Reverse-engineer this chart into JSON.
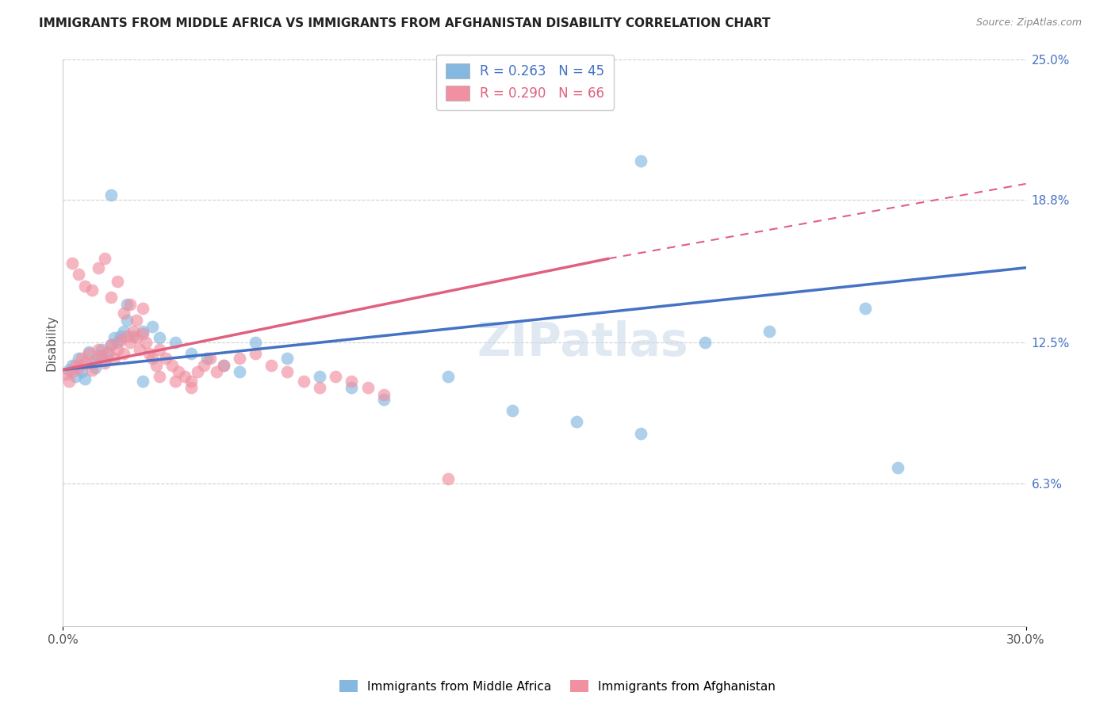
{
  "title": "IMMIGRANTS FROM MIDDLE AFRICA VS IMMIGRANTS FROM AFGHANISTAN DISABILITY CORRELATION CHART",
  "source": "Source: ZipAtlas.com",
  "ylabel": "Disability",
  "xlim": [
    0.0,
    0.3
  ],
  "ylim": [
    0.0,
    0.25
  ],
  "x_tick_labels": [
    "0.0%",
    "30.0%"
  ],
  "y_tick_labels_right": [
    "25.0%",
    "18.8%",
    "12.5%",
    "6.3%"
  ],
  "y_tick_values_right": [
    0.25,
    0.188,
    0.125,
    0.063
  ],
  "blue_R": 0.263,
  "blue_N": 45,
  "pink_R": 0.29,
  "pink_N": 66,
  "blue_color": "#85b8e0",
  "pink_color": "#f090a0",
  "blue_line_color": "#4472c4",
  "pink_line_color": "#e06080",
  "watermark": "ZIPatlas",
  "legend_label_blue": "Immigrants from Middle Africa",
  "legend_label_pink": "Immigrants from Afghanistan",
  "blue_scatter_x": [
    0.002,
    0.003,
    0.004,
    0.005,
    0.006,
    0.007,
    0.008,
    0.009,
    0.01,
    0.011,
    0.012,
    0.013,
    0.014,
    0.015,
    0.016,
    0.017,
    0.018,
    0.019,
    0.02,
    0.022,
    0.025,
    0.028,
    0.03,
    0.035,
    0.04,
    0.045,
    0.05,
    0.055,
    0.06,
    0.07,
    0.08,
    0.09,
    0.1,
    0.12,
    0.14,
    0.16,
    0.18,
    0.2,
    0.22,
    0.25,
    0.26,
    0.015,
    0.02,
    0.025,
    0.18
  ],
  "blue_scatter_y": [
    0.113,
    0.115,
    0.11,
    0.118,
    0.112,
    0.109,
    0.121,
    0.116,
    0.114,
    0.119,
    0.122,
    0.117,
    0.12,
    0.124,
    0.127,
    0.125,
    0.128,
    0.13,
    0.135,
    0.128,
    0.13,
    0.132,
    0.127,
    0.125,
    0.12,
    0.118,
    0.115,
    0.112,
    0.125,
    0.118,
    0.11,
    0.105,
    0.1,
    0.11,
    0.095,
    0.09,
    0.085,
    0.125,
    0.13,
    0.14,
    0.07,
    0.19,
    0.142,
    0.108,
    0.205
  ],
  "pink_scatter_x": [
    0.001,
    0.002,
    0.003,
    0.004,
    0.005,
    0.006,
    0.007,
    0.008,
    0.009,
    0.01,
    0.011,
    0.012,
    0.013,
    0.014,
    0.015,
    0.016,
    0.017,
    0.018,
    0.019,
    0.02,
    0.021,
    0.022,
    0.023,
    0.024,
    0.025,
    0.026,
    0.027,
    0.028,
    0.029,
    0.03,
    0.032,
    0.034,
    0.036,
    0.038,
    0.04,
    0.042,
    0.044,
    0.046,
    0.048,
    0.05,
    0.055,
    0.06,
    0.065,
    0.07,
    0.075,
    0.08,
    0.085,
    0.09,
    0.095,
    0.1,
    0.003,
    0.005,
    0.007,
    0.009,
    0.011,
    0.013,
    0.015,
    0.017,
    0.019,
    0.021,
    0.023,
    0.025,
    0.03,
    0.035,
    0.04,
    0.12
  ],
  "pink_scatter_y": [
    0.111,
    0.108,
    0.112,
    0.115,
    0.114,
    0.118,
    0.116,
    0.12,
    0.113,
    0.117,
    0.122,
    0.119,
    0.116,
    0.121,
    0.124,
    0.118,
    0.122,
    0.126,
    0.12,
    0.128,
    0.125,
    0.13,
    0.127,
    0.122,
    0.129,
    0.125,
    0.12,
    0.118,
    0.115,
    0.122,
    0.118,
    0.115,
    0.112,
    0.11,
    0.108,
    0.112,
    0.115,
    0.118,
    0.112,
    0.115,
    0.118,
    0.12,
    0.115,
    0.112,
    0.108,
    0.105,
    0.11,
    0.108,
    0.105,
    0.102,
    0.16,
    0.155,
    0.15,
    0.148,
    0.158,
    0.162,
    0.145,
    0.152,
    0.138,
    0.142,
    0.135,
    0.14,
    0.11,
    0.108,
    0.105,
    0.065
  ]
}
